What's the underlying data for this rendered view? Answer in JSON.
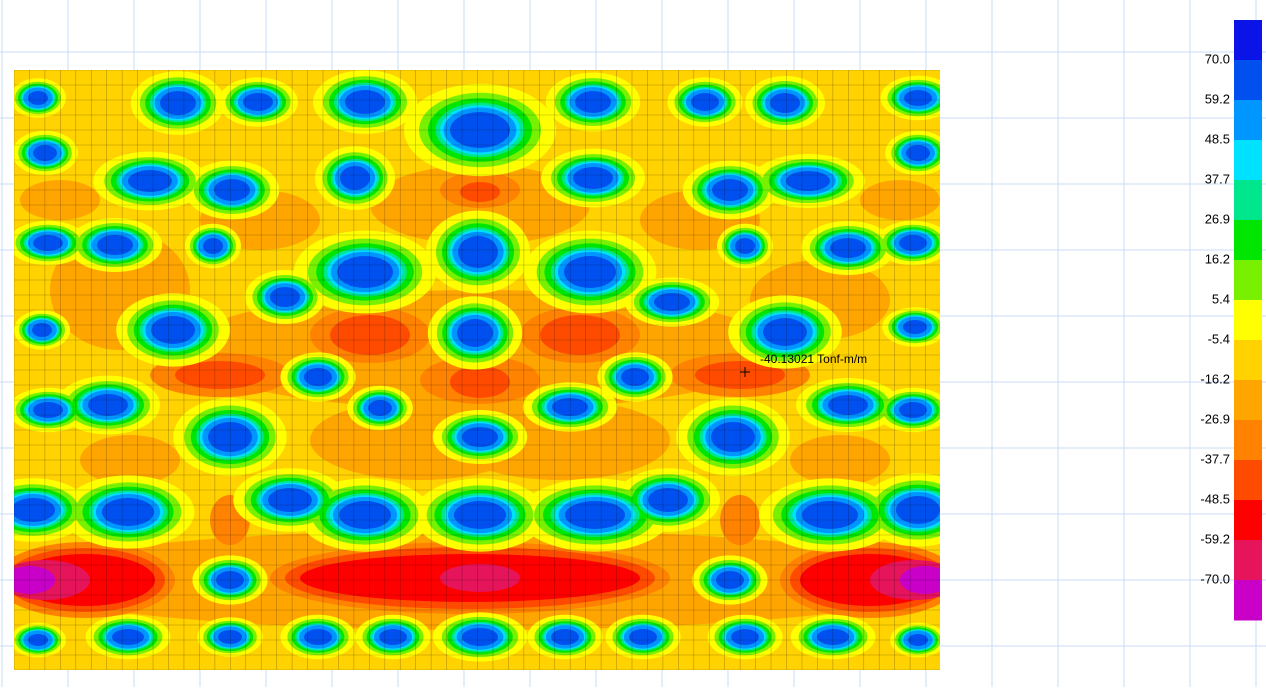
{
  "legend": {
    "labels": [
      "70.0",
      "59.2",
      "48.5",
      "37.7",
      "26.9",
      "16.2",
      "5.4",
      "-5.4",
      "-16.2",
      "-26.9",
      "-37.7",
      "-48.5",
      "-59.2",
      "-70.0"
    ],
    "colors": [
      "#0a14e6",
      "#0050f0",
      "#0096ff",
      "#00e1ff",
      "#00e68c",
      "#00e600",
      "#78f000",
      "#ffff00",
      "#ffd200",
      "#ffa500",
      "#ff8200",
      "#ff4b00",
      "#ff0000",
      "#e6145a",
      "#c800c8"
    ]
  },
  "annotation": {
    "text": "-40.13021 Tonf-m/m"
  }
}
